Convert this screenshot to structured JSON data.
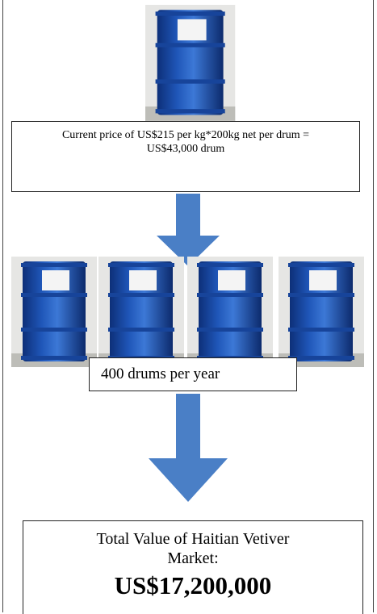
{
  "box_price": {
    "line1": "Current price of US$215 per kg*200kg net per drum =",
    "line2": "US$43,000 drum"
  },
  "box_volume": {
    "text": "400 drums per year"
  },
  "box_total": {
    "title": "Total Value of Haitian Vetiver Market:",
    "value": "US$17,200,000"
  }
}
